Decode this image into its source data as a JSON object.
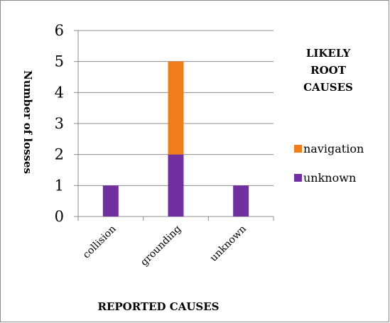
{
  "chart_data": {
    "type": "bar",
    "stacked": true,
    "categories": [
      "collision",
      "grounding",
      "unknown"
    ],
    "series": [
      {
        "name": "unknown",
        "values": [
          1,
          2,
          1
        ],
        "color": "#7030a0"
      },
      {
        "name": "navigation",
        "values": [
          0,
          3,
          0
        ],
        "color": "#f07c1c"
      }
    ],
    "title": "",
    "xlabel": "REPORTED CAUSES",
    "ylabel": "Number of losses",
    "ylim": [
      0,
      6
    ],
    "yticks": [
      "0",
      "1",
      "2",
      "3",
      "4",
      "5",
      "6"
    ],
    "grid": true,
    "legend": {
      "title_lines": [
        "LIKELY",
        "ROOT",
        "CAUSES"
      ],
      "placement": "right",
      "entries": [
        "navigation",
        "unknown"
      ]
    }
  }
}
